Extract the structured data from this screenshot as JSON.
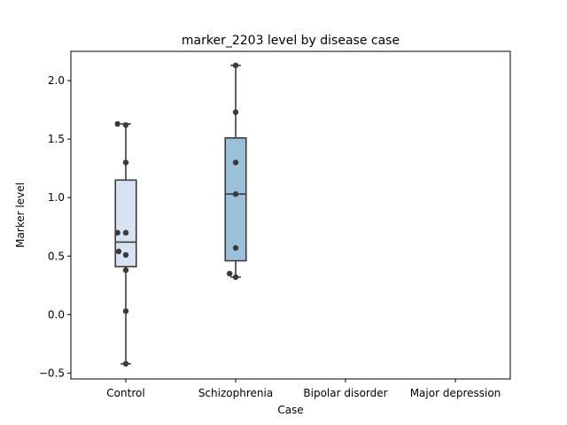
{
  "chart_data": {
    "type": "box",
    "title": "marker_2203 level by disease case",
    "xlabel": "Case",
    "ylabel": "Marker level",
    "categories": [
      "Control",
      "Schizophrenia",
      "Bipolar disorder",
      "Major depression"
    ],
    "ylim": [
      -0.55,
      2.25
    ],
    "yticks": [
      -0.5,
      0.0,
      0.5,
      1.0,
      1.5,
      2.0
    ],
    "ytick_labels": [
      "−0.5",
      "0.0",
      "0.5",
      "1.0",
      "1.5",
      "2.0"
    ],
    "grid": false,
    "legend": "none",
    "boxes": [
      {
        "category": "Control",
        "whisker_low": -0.42,
        "q1": 0.41,
        "median": 0.62,
        "q3": 1.15,
        "whisker_high": 1.63,
        "color": "#d6e4f2",
        "points": [
          1.63,
          1.62,
          1.3,
          0.7,
          0.7,
          0.54,
          0.51,
          0.38,
          0.03,
          -0.42
        ],
        "jitter": [
          -0.15,
          0.0,
          0.0,
          -0.15,
          0.0,
          -0.13,
          0.0,
          0.0,
          0.0,
          0.0
        ]
      },
      {
        "category": "Schizophrenia",
        "whisker_low": 0.32,
        "q1": 0.46,
        "median": 1.03,
        "q3": 1.51,
        "whisker_high": 2.13,
        "color": "#9bc1da",
        "points": [
          2.13,
          1.73,
          1.3,
          1.03,
          0.57,
          0.35,
          0.32
        ],
        "jitter": [
          0.0,
          0.0,
          0.0,
          0.0,
          0.0,
          -0.11,
          0.0
        ]
      }
    ]
  }
}
